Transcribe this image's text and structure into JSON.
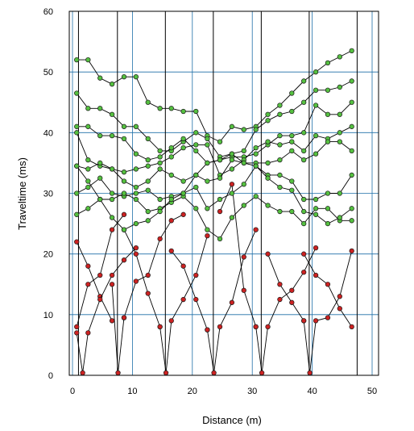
{
  "chart_data": {
    "type": "scatter",
    "xlabel": "Distance (m)",
    "ylabel": "Traveltime (ms)",
    "xlim": [
      0,
      50
    ],
    "ylim": [
      0,
      60
    ],
    "xticks": [
      "0",
      "10",
      "20",
      "30",
      "40",
      "50"
    ],
    "yticks": [
      "0",
      "10",
      "20",
      "30",
      "40",
      "50",
      "60"
    ],
    "grid": true,
    "colors": {
      "background": "#ffffff",
      "gridline": "#1e6fa8",
      "receiver_line": "#000000",
      "direct_marker": "#cc2222",
      "refracted_marker": "#55c040",
      "connector": "#000000"
    },
    "receiver_positions": [
      1,
      7.5,
      15.5,
      23.5,
      31.5,
      39.5,
      47.5
    ],
    "series": [
      {
        "color": "red",
        "points": [
          [
            0.7,
            22
          ],
          [
            2.6,
            18
          ],
          [
            4.6,
            13
          ],
          [
            6.6,
            9
          ]
        ]
      },
      {
        "color": "red",
        "points": [
          [
            0.7,
            8
          ],
          [
            2.6,
            15
          ],
          [
            4.6,
            16.5
          ],
          [
            6.6,
            24
          ],
          [
            8.6,
            26.5
          ]
        ]
      },
      {
        "color": "red",
        "points": [
          [
            0.7,
            7
          ],
          [
            1.7,
            0.4
          ],
          [
            2.6,
            7
          ],
          [
            4.6,
            12.5
          ],
          [
            6.6,
            16.5
          ],
          [
            8.6,
            19
          ],
          [
            10.6,
            21
          ]
        ]
      },
      {
        "color": "red",
        "points": [
          [
            8.6,
            9.5
          ],
          [
            10.6,
            15.5
          ],
          [
            12.6,
            16.5
          ],
          [
            14.6,
            22.5
          ],
          [
            16.5,
            25.5
          ],
          [
            18.5,
            26.5
          ]
        ]
      },
      {
        "color": "red",
        "points": [
          [
            6.6,
            15
          ],
          [
            7.6,
            0.4
          ],
          [
            8.6,
            9.5
          ]
        ]
      },
      {
        "color": "red",
        "points": [
          [
            8.6,
            24
          ],
          [
            10.6,
            20
          ],
          [
            12.6,
            13.5
          ],
          [
            14.6,
            8
          ]
        ]
      },
      {
        "color": "red",
        "points": [
          [
            14.6,
            8
          ],
          [
            15.6,
            0.4
          ],
          [
            16.5,
            9
          ],
          [
            18.5,
            12.5
          ],
          [
            20.6,
            16.5
          ],
          [
            22.5,
            23
          ]
        ]
      },
      {
        "color": "red",
        "points": [
          [
            16.5,
            20.5
          ],
          [
            18.5,
            18
          ],
          [
            20.6,
            12.5
          ],
          [
            22.5,
            7.5
          ]
        ]
      },
      {
        "color": "red",
        "points": [
          [
            22.5,
            7.5
          ],
          [
            23.6,
            0.4
          ],
          [
            24.6,
            8
          ],
          [
            26.6,
            12
          ],
          [
            28.6,
            19.5
          ],
          [
            30.6,
            24
          ]
        ]
      },
      {
        "color": "red",
        "points": [
          [
            24.6,
            27
          ],
          [
            26.6,
            31.5
          ],
          [
            28.6,
            14
          ],
          [
            30.6,
            8
          ]
        ]
      },
      {
        "color": "red",
        "points": [
          [
            30.6,
            8
          ],
          [
            31.6,
            0.4
          ],
          [
            32.6,
            8
          ],
          [
            34.6,
            12.5
          ],
          [
            36.6,
            14
          ],
          [
            38.6,
            17
          ],
          [
            40.6,
            21
          ]
        ]
      },
      {
        "color": "red",
        "points": [
          [
            32.6,
            20
          ],
          [
            34.6,
            15
          ],
          [
            36.6,
            12
          ],
          [
            38.6,
            9
          ]
        ]
      },
      {
        "color": "red",
        "points": [
          [
            38.6,
            9
          ],
          [
            39.6,
            0.4
          ],
          [
            40.6,
            9
          ],
          [
            42.6,
            9.5
          ],
          [
            44.6,
            13
          ],
          [
            46.6,
            20.5
          ]
        ]
      },
      {
        "color": "red",
        "points": [
          [
            38.6,
            20
          ],
          [
            40.6,
            16.5
          ],
          [
            42.6,
            15
          ],
          [
            44.6,
            11
          ],
          [
            46.6,
            8
          ]
        ]
      },
      {
        "color": "green",
        "points": [
          [
            0.7,
            52
          ],
          [
            2.6,
            52
          ],
          [
            4.6,
            49
          ],
          [
            6.6,
            48
          ],
          [
            8.6,
            49.2
          ],
          [
            10.6,
            49.2
          ],
          [
            12.6,
            45
          ],
          [
            14.6,
            44
          ],
          [
            16.5,
            44
          ],
          [
            18.5,
            43.5
          ],
          [
            20.6,
            43.5
          ],
          [
            22.5,
            39.5
          ],
          [
            24.6,
            38.5
          ],
          [
            26.6,
            41
          ],
          [
            28.6,
            40.5
          ],
          [
            30.6,
            41
          ],
          [
            32.6,
            43
          ],
          [
            34.6,
            44.5
          ],
          [
            36.6,
            46.5
          ],
          [
            38.6,
            48.5
          ],
          [
            40.6,
            50
          ],
          [
            42.6,
            51.5
          ],
          [
            44.6,
            52.5
          ],
          [
            46.6,
            53.5
          ]
        ]
      },
      {
        "color": "green",
        "points": [
          [
            0.7,
            46.5
          ],
          [
            2.6,
            44
          ],
          [
            4.6,
            44
          ],
          [
            6.6,
            43
          ],
          [
            8.6,
            41
          ],
          [
            10.6,
            41
          ],
          [
            12.6,
            39
          ],
          [
            14.6,
            37
          ],
          [
            16.5,
            37
          ],
          [
            18.5,
            38.5
          ],
          [
            20.6,
            40
          ],
          [
            22.5,
            39
          ],
          [
            24.6,
            36
          ],
          [
            26.6,
            36.5
          ],
          [
            28.6,
            37
          ],
          [
            30.6,
            40.5
          ],
          [
            32.6,
            42
          ],
          [
            34.6,
            43
          ],
          [
            36.6,
            43.5
          ],
          [
            38.6,
            45
          ],
          [
            40.6,
            47
          ],
          [
            42.6,
            47
          ],
          [
            44.6,
            47.5
          ],
          [
            46.6,
            48.5
          ]
        ]
      },
      {
        "color": "green",
        "points": [
          [
            0.7,
            41
          ],
          [
            2.6,
            41
          ],
          [
            4.6,
            39.5
          ],
          [
            6.6,
            39.5
          ],
          [
            8.6,
            39
          ],
          [
            10.6,
            36.5
          ],
          [
            12.6,
            35.5
          ],
          [
            14.6,
            36
          ],
          [
            16.5,
            37.5
          ],
          [
            18.5,
            39
          ],
          [
            20.6,
            37
          ],
          [
            22.5,
            35
          ],
          [
            24.6,
            35.5
          ],
          [
            26.6,
            36
          ],
          [
            28.6,
            36
          ],
          [
            30.6,
            36.5
          ],
          [
            32.6,
            38
          ],
          [
            34.6,
            39.5
          ],
          [
            36.6,
            39.5
          ],
          [
            38.6,
            40
          ],
          [
            40.6,
            44.5
          ],
          [
            42.6,
            43
          ],
          [
            44.6,
            43
          ],
          [
            46.6,
            45
          ]
        ]
      },
      {
        "color": "green",
        "points": [
          [
            0.7,
            40
          ],
          [
            2.6,
            35.5
          ],
          [
            4.6,
            34.5
          ],
          [
            6.6,
            34
          ],
          [
            8.6,
            33.5
          ],
          [
            10.6,
            34
          ],
          [
            12.6,
            34.5
          ],
          [
            14.6,
            35
          ],
          [
            16.5,
            36
          ],
          [
            18.5,
            37.5
          ],
          [
            20.6,
            38
          ],
          [
            22.5,
            38
          ],
          [
            24.6,
            33
          ],
          [
            26.6,
            34
          ],
          [
            28.6,
            35.5
          ],
          [
            30.6,
            37.5
          ],
          [
            32.6,
            38.5
          ],
          [
            34.6,
            38
          ],
          [
            36.6,
            38.5
          ],
          [
            38.6,
            37
          ],
          [
            40.6,
            39.5
          ],
          [
            42.6,
            39
          ],
          [
            44.6,
            40
          ],
          [
            46.6,
            41
          ]
        ]
      },
      {
        "color": "green",
        "points": [
          [
            0.7,
            34.5
          ],
          [
            2.6,
            34
          ],
          [
            4.6,
            35
          ],
          [
            6.6,
            34
          ],
          [
            8.6,
            32
          ],
          [
            10.6,
            31
          ],
          [
            12.6,
            32
          ],
          [
            14.6,
            34
          ],
          [
            16.5,
            33
          ],
          [
            18.5,
            32
          ],
          [
            20.6,
            33
          ],
          [
            22.5,
            32
          ],
          [
            24.6,
            32.5
          ],
          [
            26.6,
            35.5
          ],
          [
            28.6,
            35
          ],
          [
            30.6,
            35
          ],
          [
            32.6,
            35
          ],
          [
            34.6,
            35.5
          ],
          [
            36.6,
            37
          ],
          [
            38.6,
            35.5
          ],
          [
            40.6,
            36.5
          ],
          [
            42.6,
            38.5
          ],
          [
            44.6,
            38.5
          ],
          [
            46.6,
            37
          ]
        ]
      },
      {
        "color": "green",
        "points": [
          [
            0.7,
            30
          ],
          [
            2.6,
            31
          ],
          [
            4.6,
            32.5
          ],
          [
            6.6,
            30
          ],
          [
            8.6,
            29.5
          ],
          [
            10.6,
            30
          ],
          [
            12.6,
            30.5
          ],
          [
            14.6,
            29
          ],
          [
            16.5,
            29.5
          ],
          [
            18.5,
            30
          ],
          [
            20.6,
            31
          ],
          [
            22.5,
            27.5
          ],
          [
            24.6,
            29
          ],
          [
            26.6,
            30
          ],
          [
            28.6,
            31.5
          ],
          [
            30.6,
            34.5
          ],
          [
            32.6,
            33
          ],
          [
            34.6,
            33
          ],
          [
            36.6,
            32
          ],
          [
            38.6,
            29
          ],
          [
            40.6,
            29
          ],
          [
            42.6,
            30
          ],
          [
            44.6,
            30
          ],
          [
            46.6,
            33
          ]
        ]
      },
      {
        "color": "green",
        "points": [
          [
            0.7,
            26.5
          ],
          [
            2.6,
            27.5
          ],
          [
            4.6,
            29
          ],
          [
            6.6,
            29
          ],
          [
            8.6,
            30
          ],
          [
            10.6,
            29
          ],
          [
            12.6,
            27
          ],
          [
            14.6,
            27.5
          ],
          [
            16.5,
            28.5
          ],
          [
            18.5,
            29.5
          ],
          [
            20.6,
            27.5
          ],
          [
            22.5,
            24
          ],
          [
            24.6,
            22.5
          ],
          [
            26.6,
            26
          ],
          [
            28.6,
            28
          ],
          [
            30.6,
            29.5
          ],
          [
            32.6,
            28
          ],
          [
            34.6,
            27
          ],
          [
            36.6,
            27
          ],
          [
            38.6,
            25
          ],
          [
            40.6,
            27.5
          ],
          [
            42.6,
            27.5
          ],
          [
            44.6,
            25.5
          ],
          [
            46.6,
            25.5
          ]
        ]
      },
      {
        "color": "green",
        "points": [
          [
            0.7,
            34.5
          ],
          [
            2.6,
            32
          ],
          [
            4.6,
            29
          ],
          [
            6.6,
            26
          ],
          [
            8.6,
            24
          ],
          [
            10.6,
            25
          ],
          [
            12.6,
            25.5
          ],
          [
            14.6,
            27
          ],
          [
            16.5,
            29
          ],
          [
            18.5,
            30
          ],
          [
            20.6,
            33
          ],
          [
            22.5,
            35
          ],
          [
            24.6,
            35.5
          ],
          [
            26.6,
            36.5
          ],
          [
            28.6,
            35
          ],
          [
            30.6,
            34.5
          ],
          [
            32.6,
            32.5
          ],
          [
            34.6,
            31
          ],
          [
            36.6,
            30.5
          ],
          [
            38.6,
            27
          ],
          [
            40.6,
            26.5
          ],
          [
            42.6,
            25
          ],
          [
            44.6,
            26
          ],
          [
            46.6,
            27.5
          ]
        ]
      }
    ]
  }
}
